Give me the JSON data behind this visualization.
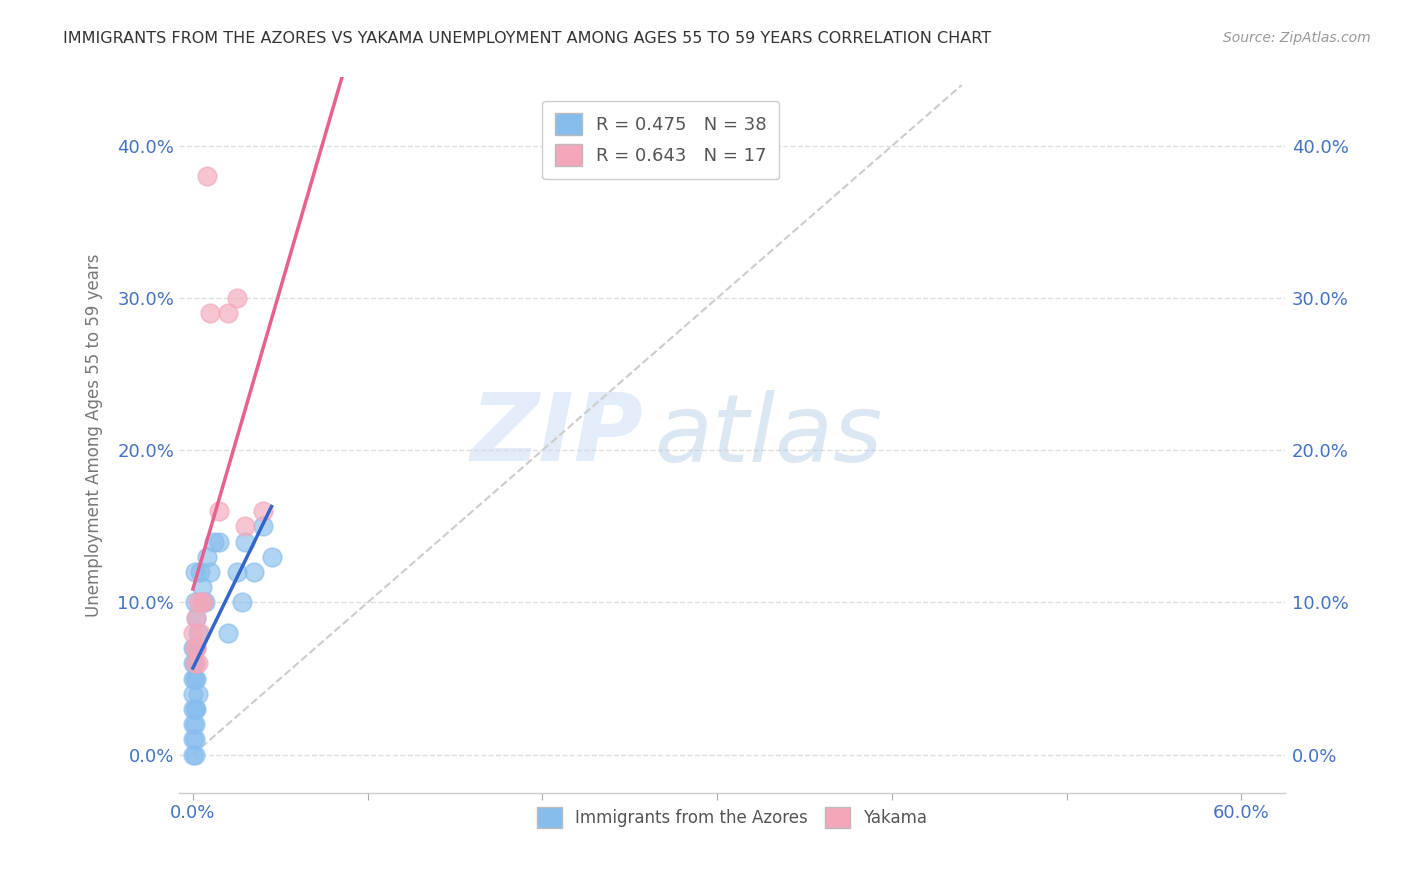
{
  "title": "IMMIGRANTS FROM THE AZORES VS YAKAMA UNEMPLOYMENT AMONG AGES 55 TO 59 YEARS CORRELATION CHART",
  "source": "Source: ZipAtlas.com",
  "xlabel_vals": [
    0.0,
    0.1,
    0.2,
    0.3,
    0.4,
    0.5,
    0.6
  ],
  "ylabel_vals": [
    0.0,
    0.1,
    0.2,
    0.3,
    0.4
  ],
  "ylabel_label": "Unemployment Among Ages 55 to 59 years",
  "xlim": [
    -0.008,
    0.625
  ],
  "ylim": [
    -0.025,
    0.445
  ],
  "watermark_zip": "ZIP",
  "watermark_atlas": "atlas",
  "legend_entries": [
    {
      "label": "R = 0.475",
      "N": "N = 38",
      "color": "#87BDED"
    },
    {
      "label": "R = 0.643",
      "N": "N = 17",
      "color": "#F4A7B9"
    }
  ],
  "legend_labels_bottom": [
    "Immigrants from the Azores",
    "Yakama"
  ],
  "azores_x": [
    0.0,
    0.0,
    0.0,
    0.0,
    0.0,
    0.0,
    0.0,
    0.0,
    0.001,
    0.001,
    0.001,
    0.001,
    0.001,
    0.001,
    0.001,
    0.001,
    0.001,
    0.002,
    0.002,
    0.002,
    0.002,
    0.003,
    0.003,
    0.004,
    0.005,
    0.006,
    0.007,
    0.008,
    0.01,
    0.012,
    0.015,
    0.02,
    0.025,
    0.028,
    0.03,
    0.035,
    0.04,
    0.045
  ],
  "azores_y": [
    0.0,
    0.01,
    0.02,
    0.03,
    0.04,
    0.05,
    0.06,
    0.07,
    0.0,
    0.01,
    0.02,
    0.03,
    0.05,
    0.06,
    0.07,
    0.1,
    0.12,
    0.03,
    0.05,
    0.07,
    0.09,
    0.04,
    0.08,
    0.12,
    0.11,
    0.1,
    0.1,
    0.13,
    0.12,
    0.14,
    0.14,
    0.08,
    0.12,
    0.1,
    0.14,
    0.12,
    0.15,
    0.13
  ],
  "yakama_x": [
    0.0,
    0.001,
    0.001,
    0.002,
    0.002,
    0.003,
    0.003,
    0.004,
    0.005,
    0.006,
    0.008,
    0.01,
    0.015,
    0.02,
    0.025,
    0.03,
    0.04
  ],
  "yakama_y": [
    0.08,
    0.06,
    0.07,
    0.07,
    0.09,
    0.06,
    0.1,
    0.08,
    0.1,
    0.1,
    0.38,
    0.29,
    0.16,
    0.29,
    0.3,
    0.15,
    0.16
  ],
  "azores_color": "#87BDED",
  "yakama_color": "#F4A7B9",
  "azores_line_color": "#3366CC",
  "yakama_line_color": "#E86090",
  "ref_line_color": "#CCCCCC",
  "grid_color": "#DDDDDD",
  "background_color": "#FFFFFF",
  "title_color": "#333333",
  "tick_color": "#4472C4",
  "ylabel_color": "#777777",
  "source_color": "#999999"
}
